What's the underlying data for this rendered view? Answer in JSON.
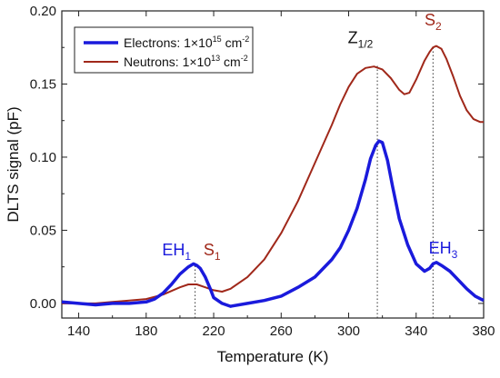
{
  "chart_data": {
    "type": "line",
    "xlabel": "Temperature (K)",
    "ylabel": "DLTS signal (pF)",
    "xlim": [
      130,
      380
    ],
    "ylim": [
      -0.01,
      0.2
    ],
    "x_ticks": [
      140,
      180,
      220,
      260,
      300,
      340,
      380
    ],
    "y_ticks": [
      0.0,
      0.05,
      0.1,
      0.15,
      0.2
    ],
    "x_tick_labels": [
      "140",
      "180",
      "220",
      "260",
      "300",
      "340",
      "380"
    ],
    "y_tick_labels": [
      "0.00",
      "0.05",
      "0.10",
      "0.15",
      "0.20"
    ],
    "grid": false,
    "legend_position": "top-left",
    "series": [
      {
        "name": "Electrons: 1×10^15 cm^-2",
        "legend_main": "Electrons: 1×10",
        "legend_exp": "15",
        "legend_unit": " cm",
        "legend_unit_exp": "-2",
        "color": "#1a1adc",
        "x": [
          130,
          140,
          150,
          160,
          170,
          180,
          185,
          190,
          195,
          200,
          205,
          208,
          210,
          212,
          215,
          218,
          220,
          225,
          230,
          240,
          250,
          260,
          270,
          280,
          290,
          295,
          300,
          305,
          310,
          313,
          316,
          318,
          320,
          323,
          326,
          330,
          335,
          340,
          345,
          348,
          350,
          352,
          355,
          360,
          365,
          370,
          375,
          380
        ],
        "y": [
          0.001,
          0.0,
          -0.001,
          0.0,
          0.0,
          0.001,
          0.003,
          0.007,
          0.013,
          0.02,
          0.025,
          0.027,
          0.026,
          0.024,
          0.018,
          0.01,
          0.004,
          0.0,
          -0.002,
          0.0,
          0.002,
          0.005,
          0.011,
          0.018,
          0.03,
          0.038,
          0.05,
          0.065,
          0.085,
          0.099,
          0.108,
          0.111,
          0.11,
          0.098,
          0.08,
          0.058,
          0.04,
          0.027,
          0.022,
          0.024,
          0.027,
          0.028,
          0.026,
          0.022,
          0.016,
          0.01,
          0.005,
          0.002
        ]
      },
      {
        "name": "Neutrons: 1×10^13 cm^-2",
        "legend_main": "Neutrons: 1×10",
        "legend_exp": "13",
        "legend_unit": " cm",
        "legend_unit_exp": "-2",
        "color": "#a0281a",
        "x": [
          130,
          140,
          150,
          160,
          170,
          180,
          190,
          200,
          205,
          210,
          215,
          220,
          225,
          230,
          240,
          250,
          260,
          270,
          280,
          290,
          295,
          300,
          305,
          310,
          315,
          320,
          325,
          330,
          333,
          336,
          340,
          345,
          348,
          350,
          352,
          355,
          358,
          362,
          366,
          370,
          374,
          378,
          380
        ],
        "y": [
          0.0,
          0.0,
          0.0,
          0.001,
          0.002,
          0.003,
          0.006,
          0.011,
          0.013,
          0.013,
          0.011,
          0.009,
          0.008,
          0.01,
          0.018,
          0.03,
          0.048,
          0.07,
          0.096,
          0.122,
          0.136,
          0.148,
          0.157,
          0.161,
          0.162,
          0.16,
          0.154,
          0.146,
          0.143,
          0.144,
          0.153,
          0.166,
          0.172,
          0.175,
          0.176,
          0.174,
          0.167,
          0.155,
          0.142,
          0.132,
          0.126,
          0.124,
          0.124
        ]
      }
    ],
    "annotations": [
      {
        "id": "eh1",
        "main": "EH",
        "sub": "1",
        "x": 198,
        "y": 0.033,
        "color": "#1a1adc"
      },
      {
        "id": "s1",
        "main": "S",
        "sub": "1",
        "x": 219,
        "y": 0.033,
        "color": "#a0281a"
      },
      {
        "id": "z12",
        "main": "Z",
        "sub": "1/2",
        "x": 307,
        "y": 0.178,
        "color": "#111111"
      },
      {
        "id": "s2",
        "main": "S",
        "sub": "2",
        "x": 350,
        "y": 0.19,
        "color": "#a0281a"
      },
      {
        "id": "eh3",
        "main": "EH",
        "sub": "3",
        "x": 356,
        "y": 0.034,
        "color": "#1a1adc"
      }
    ],
    "vlines": [
      {
        "id": "vline-209",
        "x": 209,
        "y_top": 0.027
      },
      {
        "id": "vline-317",
        "x": 317,
        "y_top": 0.163
      },
      {
        "id": "vline-350",
        "x": 350,
        "y_top": 0.176
      }
    ]
  }
}
